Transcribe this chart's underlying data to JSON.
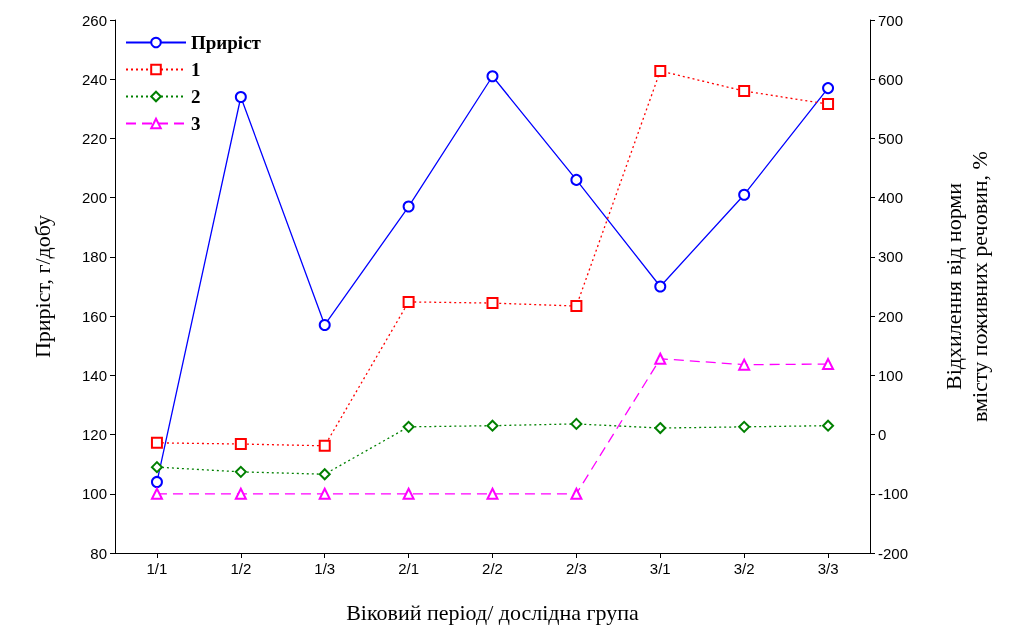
{
  "chart_data": {
    "type": "line",
    "xlabel": "Віковий період/ дослідна група",
    "ylabel": "Приріст, г/добу",
    "y2label": "Відхилення від норми\nвмісту поживних речовин, %",
    "categories": [
      "1/1",
      "1/2",
      "1/3",
      "2/1",
      "2/2",
      "2/3",
      "3/1",
      "3/2",
      "3/3"
    ],
    "series": [
      {
        "name": "Приріст",
        "color": "#0000ff",
        "marker": "circle",
        "line_style": "solid",
        "values": [
          104,
          234,
          157,
          197,
          241,
          206,
          170,
          201,
          237
        ]
      },
      {
        "name": "1",
        "color": "#ff0000",
        "marker": "square",
        "line_style": "dotted",
        "axis": "y2",
        "values": [
          -14,
          -16,
          -19,
          224,
          222,
          217,
          614,
          580,
          558
        ]
      },
      {
        "name": "2",
        "color": "#008000",
        "marker": "diamond",
        "line_style": "dotted",
        "axis": "y2",
        "values": [
          -55,
          -63,
          -67,
          13,
          15,
          18,
          11,
          13,
          15
        ]
      },
      {
        "name": "3",
        "color": "#ff00ff",
        "marker": "triangle",
        "line_style": "dashed",
        "axis": "y2",
        "values": [
          -100,
          -100,
          -100,
          -100,
          -100,
          -100,
          128,
          118,
          119
        ]
      }
    ],
    "ylim": [
      80,
      260
    ],
    "yticks": [
      80,
      100,
      120,
      140,
      160,
      180,
      200,
      220,
      240,
      260
    ],
    "y2lim": [
      -200,
      700
    ],
    "y2ticks": [
      -200,
      -100,
      0,
      100,
      200,
      300,
      400,
      500,
      600,
      700
    ],
    "grid": false,
    "legend": "top left"
  }
}
